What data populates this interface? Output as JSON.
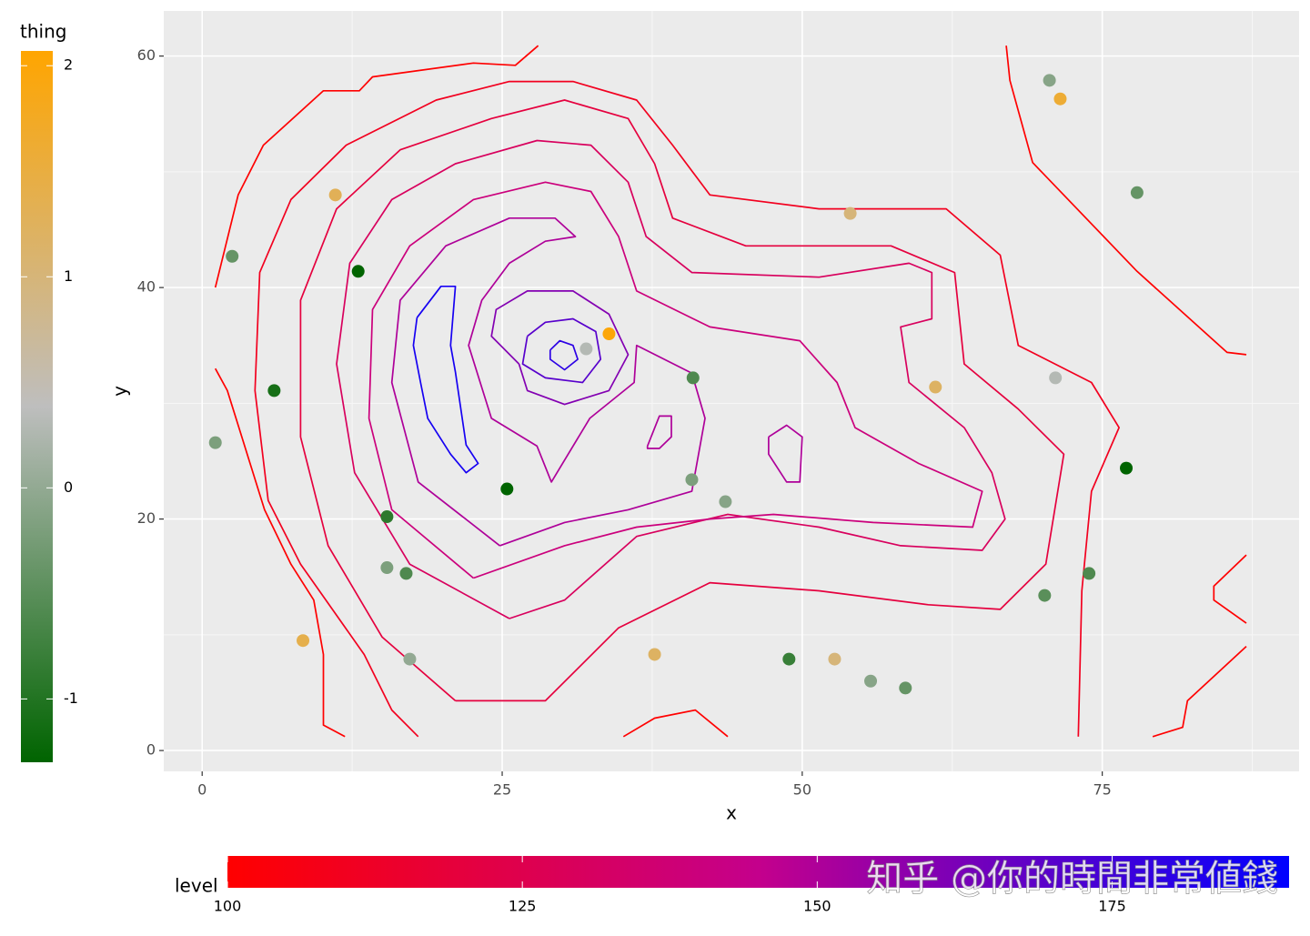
{
  "chart_data": {
    "type": "contour",
    "x_label": "x",
    "y_label": "y",
    "xlim": [
      -3.2,
      91.4
    ],
    "ylim": [
      -1.8,
      63.9
    ],
    "xticks": [
      0,
      25,
      50,
      75
    ],
    "yticks": [
      0,
      20,
      40,
      60
    ],
    "grid": true,
    "points": {
      "x": [
        70.6,
        71.5,
        77.9,
        54.0,
        11.1,
        2.5,
        13.0,
        33.9,
        32.0,
        40.9,
        71.1,
        61.1,
        6.0,
        1.1,
        25.4,
        77.0,
        40.8,
        43.6,
        15.4,
        15.4,
        17.0,
        73.9,
        70.2,
        8.4,
        17.3,
        37.7,
        48.9,
        52.7,
        55.7,
        58.6
      ],
      "y": [
        57.9,
        56.3,
        48.2,
        46.4,
        48.0,
        42.7,
        41.4,
        36.0,
        34.7,
        32.2,
        32.2,
        31.4,
        31.1,
        26.6,
        22.6,
        24.4,
        23.4,
        21.5,
        20.2,
        15.8,
        15.3,
        15.3,
        13.4,
        9.5,
        7.9,
        8.3,
        7.9,
        7.9,
        6.0,
        5.4
      ],
      "thing": [
        -0.1,
        1.6,
        -0.4,
        1.0,
        1.3,
        -0.4,
        -1.3,
        2.0,
        0.3,
        -0.6,
        0.3,
        1.2,
        -1.1,
        -0.2,
        -1.3,
        -1.3,
        -0.2,
        -0.1,
        -0.9,
        -0.2,
        -0.6,
        -0.6,
        -0.5,
        1.4,
        0.0,
        1.2,
        -0.8,
        1.0,
        -0.1,
        -0.4
      ]
    },
    "thing_legend": {
      "title": "thing",
      "limits": [
        -1.3,
        2.07
      ],
      "ticks": [
        -1,
        0,
        1,
        2
      ],
      "colors": [
        "#006400",
        "#bebebe",
        "#ffa500"
      ]
    },
    "level_legend": {
      "title": "level",
      "limits": [
        100,
        190
      ],
      "ticks": [
        100,
        125,
        150,
        175
      ],
      "colors": [
        "#ff0000",
        "#c4008c",
        "#0000ff"
      ]
    },
    "contours": [
      {
        "level": 100,
        "x": [
          1.1,
          3.0,
          5.1,
          10.1,
          13.1,
          14.2,
          22.6,
          26.1,
          28.0,
          null,
          1.1,
          2.1,
          3.3,
          5.2,
          7.4,
          9.3,
          10.1,
          10.1,
          11.9,
          null,
          67.0,
          67.3,
          69.2,
          77.9,
          85.4,
          87.0,
          null,
          87.0,
          84.3,
          84.3,
          87.0,
          null,
          87.0,
          82.1,
          81.7,
          79.2,
          null,
          35.1,
          37.7,
          41.1,
          43.8
        ],
        "y": [
          40.0,
          48.0,
          52.3,
          57.0,
          57.0,
          58.2,
          59.4,
          59.2,
          60.9,
          null,
          33.0,
          31.1,
          27.1,
          20.8,
          16.1,
          13.0,
          8.3,
          2.2,
          1.2,
          null,
          60.9,
          57.9,
          50.8,
          41.4,
          34.4,
          34.2,
          null,
          16.9,
          14.2,
          13.0,
          11.0,
          null,
          9.0,
          4.3,
          2.0,
          1.2,
          null,
          1.2,
          2.8,
          3.5,
          1.2
        ]
      },
      {
        "level": 110,
        "x": [
          18.0,
          15.8,
          13.5,
          8.2,
          5.5,
          4.4,
          4.8,
          7.4,
          12.0,
          19.5,
          25.6,
          30.9,
          36.2,
          39.2,
          42.3,
          51.4,
          62.0,
          66.5,
          68.0,
          74.1,
          76.4,
          74.1,
          73.3,
          73.0
        ],
        "y": [
          1.2,
          3.5,
          8.3,
          16.1,
          21.6,
          31.1,
          41.3,
          47.6,
          52.3,
          56.2,
          57.8,
          57.8,
          56.2,
          52.3,
          48.0,
          46.8,
          46.8,
          42.8,
          35.0,
          31.8,
          27.9,
          22.4,
          13.8,
          1.2
        ]
      },
      {
        "level": 120,
        "x": [
          21.1,
          15.0,
          10.5,
          8.2,
          8.2,
          11.2,
          16.5,
          24.1,
          30.2,
          35.5,
          37.7,
          39.2,
          45.3,
          57.4,
          62.7,
          63.5,
          68.0,
          71.8,
          70.3,
          66.5,
          60.5,
          51.4,
          42.3,
          34.7,
          28.6,
          21.1
        ],
        "y": [
          4.3,
          9.8,
          17.7,
          27.1,
          38.9,
          46.8,
          51.9,
          54.6,
          56.2,
          54.6,
          50.7,
          46.0,
          43.6,
          43.6,
          41.3,
          33.4,
          29.5,
          25.6,
          16.1,
          12.2,
          12.6,
          13.8,
          14.5,
          10.6,
          4.3,
          4.3
        ]
      },
      {
        "level": 130,
        "x": [
          25.6,
          17.3,
          12.7,
          11.2,
          12.3,
          15.8,
          21.1,
          27.9,
          32.4,
          35.5,
          37.0,
          40.8,
          51.4,
          58.9,
          60.8,
          60.8,
          58.2,
          58.9,
          63.5,
          65.8,
          66.9,
          65.0,
          58.2,
          51.4,
          43.8,
          36.2,
          30.2,
          25.6
        ],
        "y": [
          11.4,
          16.1,
          24.0,
          33.4,
          42.1,
          47.6,
          50.7,
          52.7,
          52.3,
          49.1,
          44.4,
          41.3,
          40.9,
          42.1,
          41.3,
          37.3,
          36.6,
          31.8,
          27.9,
          24.0,
          20.0,
          17.3,
          17.7,
          19.3,
          20.4,
          18.5,
          13.0,
          11.4
        ]
      },
      {
        "level": 140,
        "x": [
          22.6,
          15.8,
          13.9,
          14.2,
          17.3,
          22.6,
          28.6,
          32.4,
          34.7,
          36.2,
          42.3,
          49.8,
          52.9,
          54.4,
          59.7,
          65.0,
          64.2,
          55.9,
          47.6,
          42.3,
          36.2,
          30.2,
          22.6
        ],
        "y": [
          14.9,
          20.8,
          28.7,
          38.1,
          43.6,
          47.6,
          49.1,
          48.3,
          44.4,
          39.7,
          36.6,
          35.4,
          31.8,
          27.9,
          24.8,
          22.4,
          19.3,
          19.7,
          20.4,
          20.0,
          19.3,
          17.7,
          14.9
        ]
      },
      {
        "level": 150,
        "x": [
          24.8,
          18.0,
          15.8,
          16.5,
          20.3,
          25.6,
          29.4,
          31.1,
          28.6,
          25.6,
          23.3,
          22.2,
          24.1,
          27.9,
          29.1,
          32.3,
          36.0,
          36.2,
          40.8,
          41.9,
          40.8,
          35.5,
          30.2,
          24.8,
          null,
          37.1,
          38.1,
          39.1,
          39.1,
          38.1,
          37.1,
          37.1,
          null,
          47.2,
          48.7,
          50.0,
          49.8,
          48.7,
          47.2,
          47.2
        ],
        "y": [
          17.7,
          23.2,
          31.8,
          38.9,
          43.6,
          46.0,
          46.0,
          44.4,
          44.0,
          42.1,
          38.9,
          35.0,
          28.7,
          26.3,
          23.2,
          28.7,
          31.8,
          35.0,
          32.6,
          28.7,
          22.4,
          20.8,
          19.7,
          17.7,
          null,
          26.3,
          28.9,
          28.9,
          27.1,
          26.1,
          26.1,
          26.3,
          null,
          27.1,
          28.1,
          27.1,
          23.2,
          23.2,
          25.6,
          27.1
        ]
      },
      {
        "level": 160,
        "x": [
          26.4,
          24.1,
          24.5,
          27.1,
          30.9,
          33.9,
          35.5,
          33.9,
          30.2,
          27.1,
          26.4
        ],
        "y": [
          33.4,
          35.8,
          38.1,
          39.7,
          39.7,
          37.7,
          34.2,
          31.1,
          29.9,
          31.1,
          33.4
        ]
      },
      {
        "level": 170,
        "x": [
          27.1,
          28.6,
          30.9,
          32.8,
          33.2,
          31.7,
          28.6,
          26.7,
          27.1
        ],
        "y": [
          35.8,
          37.0,
          37.3,
          36.2,
          33.8,
          31.8,
          32.2,
          33.4,
          35.8
        ]
      },
      {
        "level": 180,
        "x": [
          29.0,
          29.8,
          30.9,
          31.3,
          30.2,
          29.0,
          29.0
        ],
        "y": [
          34.6,
          35.4,
          35.0,
          33.8,
          32.9,
          33.8,
          34.6
        ]
      },
      {
        "level": 185,
        "x": [
          17.9,
          19.9,
          21.1,
          20.7,
          21.1,
          22.0,
          23.0,
          22.0,
          20.7,
          18.8,
          18.2,
          17.6,
          17.9
        ],
        "y": [
          37.4,
          40.1,
          40.1,
          35.0,
          32.7,
          26.4,
          24.8,
          24.0,
          25.6,
          28.7,
          31.8,
          35.0,
          37.4
        ]
      }
    ]
  },
  "watermark": "知乎 @你的時間非常値錢"
}
